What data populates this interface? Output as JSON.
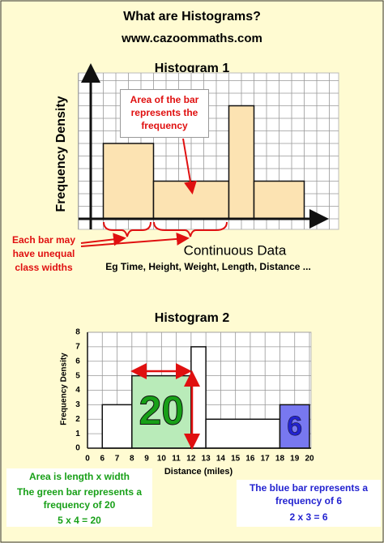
{
  "title": "What are Histograms?",
  "website": "www.cazoommaths.com",
  "chart_data": [
    {
      "type": "histogram",
      "title": "Histogram 1",
      "xlabel": "Continuous Data",
      "subtitle": "Eg Time, Height, Weight, Length, Distance ...",
      "ylabel": "Frequency Density",
      "bins": [
        1,
        5,
        11,
        13,
        17
      ],
      "values": [
        6,
        3,
        9,
        3
      ],
      "color": "#fce3b2",
      "xlim": [
        0,
        18
      ],
      "ylim": [
        0,
        11
      ],
      "grid": true,
      "annotations": [
        "Area of the bar represents the frequency",
        "Each bar may have unequal class widths"
      ]
    },
    {
      "type": "histogram",
      "title": "Histogram 2",
      "xlabel": "Distance (miles)",
      "ylabel": "Frequency Density",
      "bins": [
        6,
        8,
        12,
        13,
        18,
        20
      ],
      "values": [
        3,
        5,
        7,
        2,
        3
      ],
      "colors": [
        "#ffffff",
        "#b9ebb9",
        "#ffffff",
        "#ffffff",
        "#7878f0"
      ],
      "frequency_labels": [
        null,
        20,
        null,
        null,
        6
      ],
      "xlim": [
        0,
        20
      ],
      "ylim": [
        0,
        8
      ],
      "xticks": [
        0,
        6,
        7,
        8,
        9,
        10,
        11,
        12,
        13,
        14,
        15,
        16,
        17,
        18,
        19,
        20
      ],
      "yticks": [
        0,
        1,
        2,
        3,
        4,
        5,
        6,
        7,
        8
      ],
      "x_axis_break": [
        0,
        6
      ],
      "grid": true,
      "annotations": [
        "Area is length x width",
        "The green bar represents a frequency of 20",
        "5 x 4 = 20",
        "The blue bar represents a frequency of 6",
        "2 x 3 = 6"
      ]
    }
  ]
}
